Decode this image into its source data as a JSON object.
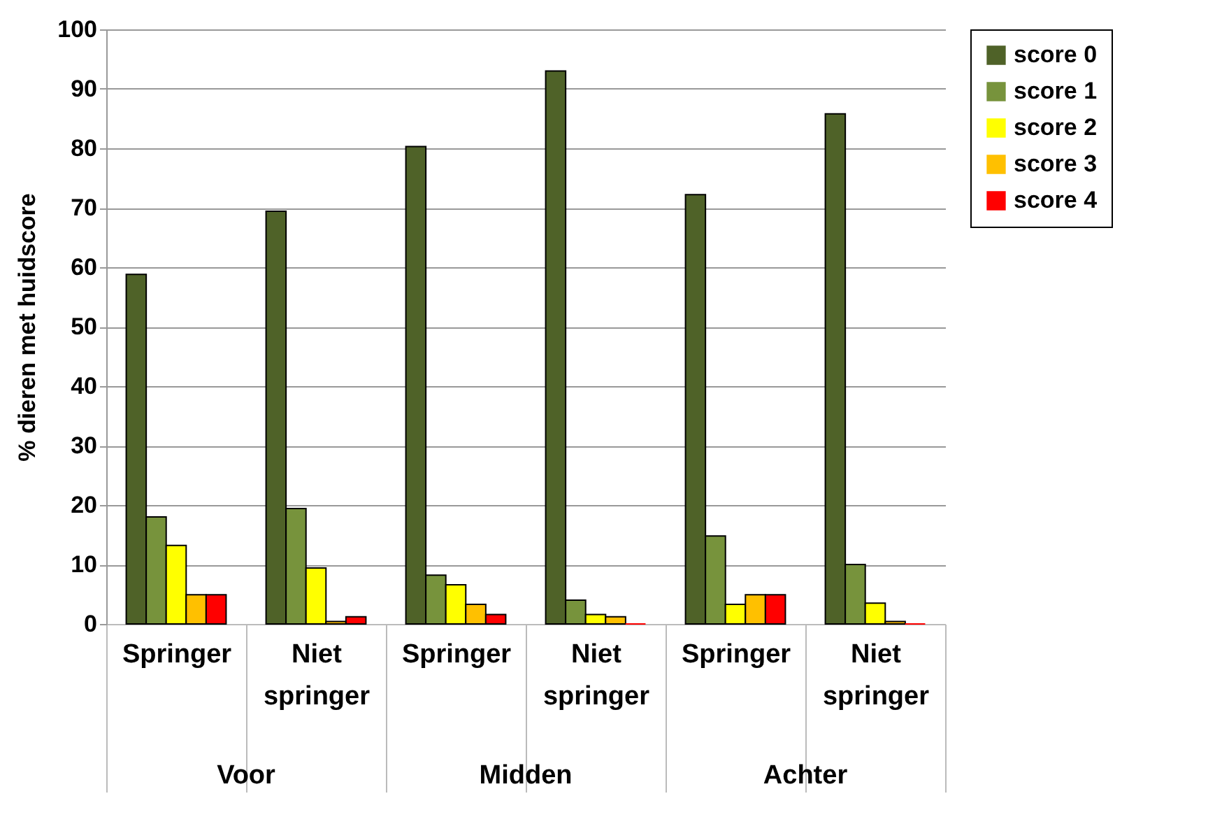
{
  "chart_data": {
    "type": "bar",
    "ylabel": "% dieren met huidscore",
    "categories": [
      "Springer",
      "Niet springer",
      "Springer",
      "Niet springer",
      "Springer",
      "Niet springer"
    ],
    "series": [
      {
        "name": "score 0",
        "color": "#4f6228",
        "values": [
          58.8,
          69.4,
          80.3,
          93,
          72.2,
          85.8
        ]
      },
      {
        "name": "score 1",
        "color": "#77933c",
        "values": [
          18,
          19.4,
          8.2,
          4,
          14.8,
          10
        ]
      },
      {
        "name": "score 2",
        "color": "#ffff00",
        "values": [
          13.2,
          9.4,
          6.6,
          1.6,
          3.3,
          3.5
        ]
      },
      {
        "name": "score 3",
        "color": "#ffc000",
        "values": [
          4.9,
          0.4,
          3.3,
          1.2,
          4.9,
          0.4
        ]
      },
      {
        "name": "score 4",
        "color": "#ff0000",
        "values": [
          4.9,
          1.2,
          1.6,
          0,
          4.9,
          0
        ]
      }
    ],
    "ylim": [
      0,
      100
    ],
    "yticks": [
      0,
      10,
      20,
      30,
      40,
      50,
      60,
      70,
      80,
      90,
      100
    ],
    "grid": "y",
    "legend": "right",
    "annotations": [
      "Voor",
      "Midden",
      "Achter"
    ]
  }
}
